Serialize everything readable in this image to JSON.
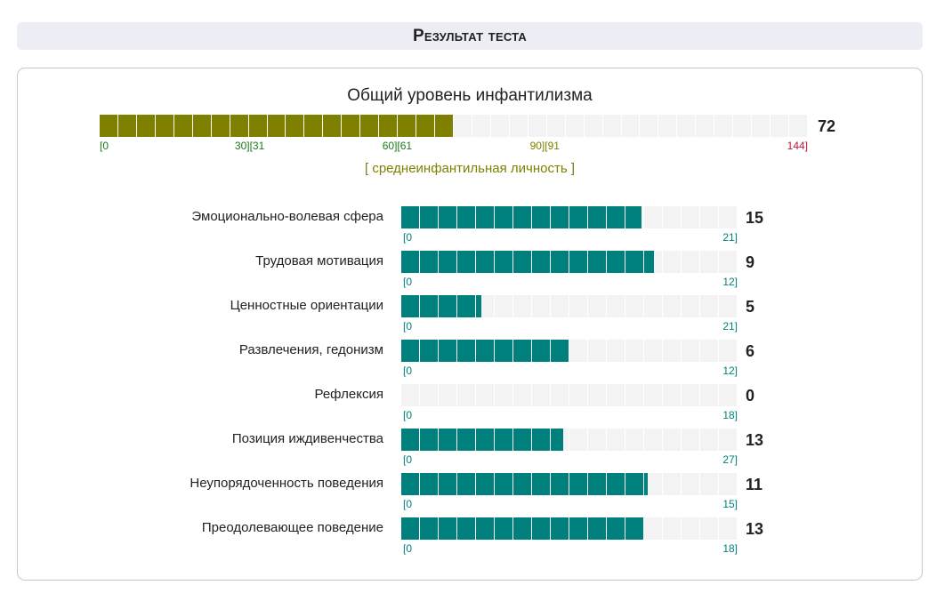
{
  "header": {
    "title": "Результат теста"
  },
  "overall": {
    "title": "Общий уровень инфантилизма",
    "value": 72,
    "max": 144,
    "fill_color": "#808000",
    "ticks": [
      {
        "text": "[0",
        "value": 0,
        "align": "left",
        "color": "#1a7a1a"
      },
      {
        "text": "30][31",
        "value": 30.5,
        "align": "center",
        "color": "#1a7a1a"
      },
      {
        "text": "60][61",
        "value": 60.5,
        "align": "center",
        "color": "#1a7a1a"
      },
      {
        "text": "90][91",
        "value": 90.5,
        "align": "center",
        "color": "#808000"
      },
      {
        "text": "144]",
        "value": 144,
        "align": "right",
        "color": "#c0143c"
      }
    ],
    "verdict": "[ среднеинфантильная личность ]",
    "verdict_color": "#808000"
  },
  "scale_color": "#00807d",
  "scales": [
    {
      "label": "Эмоционально-волевая сфера",
      "value": 15,
      "min_text": "[0",
      "max_text": "21]",
      "max": 21
    },
    {
      "label": "Трудовая мотивация",
      "value": 9,
      "min_text": "[0",
      "max_text": "12]",
      "max": 12
    },
    {
      "label": "Ценностные ориентации",
      "value": 5,
      "min_text": "[0",
      "max_text": "21]",
      "max": 21
    },
    {
      "label": "Развлечения, гедонизм",
      "value": 6,
      "min_text": "[0",
      "max_text": "12]",
      "max": 12
    },
    {
      "label": "Рефлексия",
      "value": 0,
      "min_text": "[0",
      "max_text": "18]",
      "max": 18
    },
    {
      "label": "Позиция иждивенчества",
      "value": 13,
      "min_text": "[0",
      "max_text": "27]",
      "max": 27
    },
    {
      "label": "Неупорядоченность поведения",
      "value": 11,
      "min_text": "[0",
      "max_text": "15]",
      "max": 15
    },
    {
      "label": "Преодолевающее поведение",
      "value": 13,
      "min_text": "[0",
      "max_text": "18]",
      "max": 18
    }
  ]
}
